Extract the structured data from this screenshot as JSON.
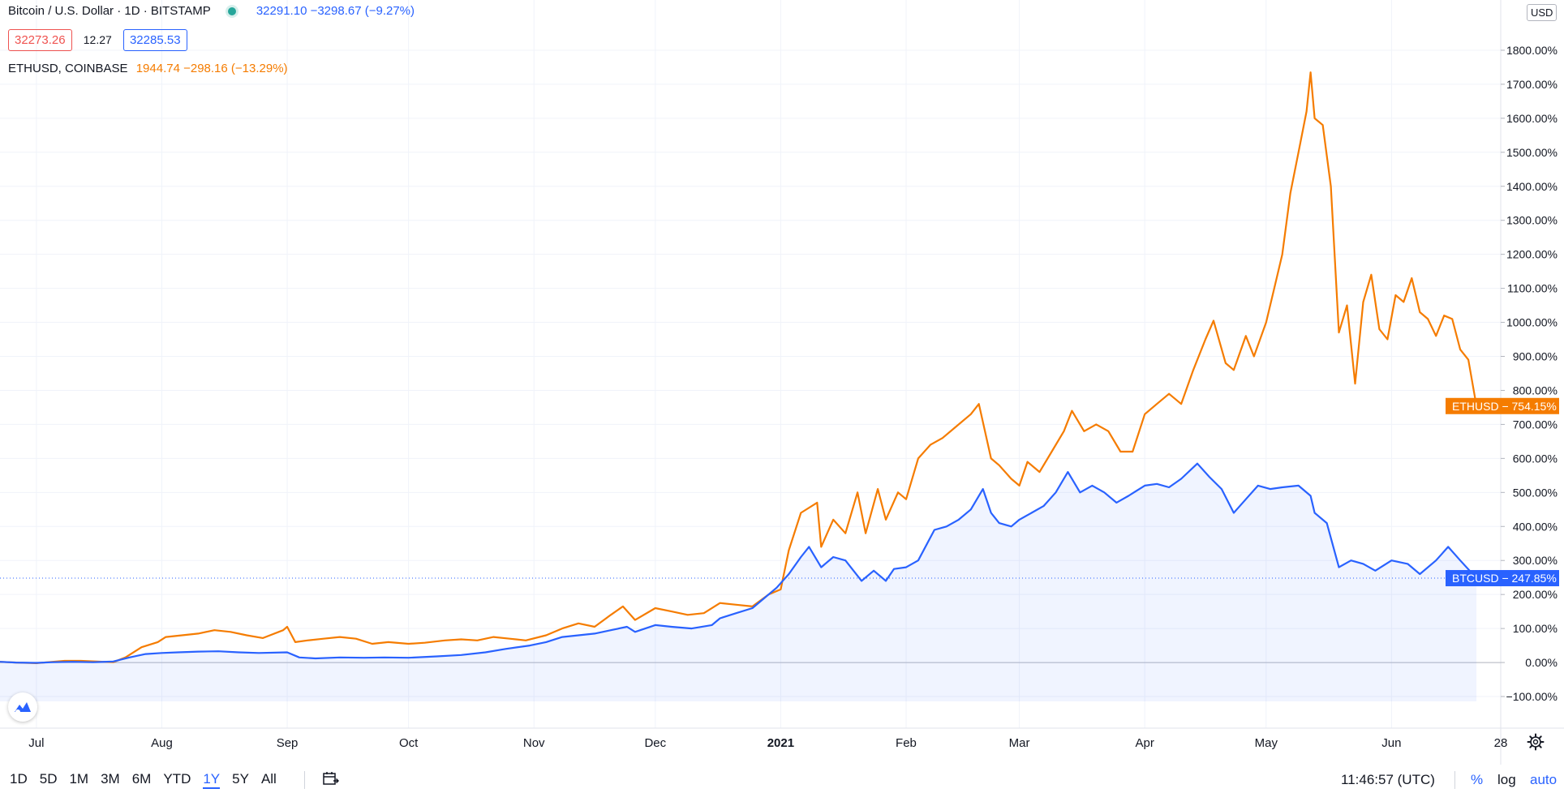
{
  "header": {
    "title": "Bitcoin / U.S. Dollar · 1D · BITSTAMP",
    "btc_quote": "32291.10 −3298.67 (−9.27%)",
    "bid": "32273.26",
    "spread": "12.27",
    "ask": "32285.53",
    "compare_label": "ETHUSD, COINBASE",
    "eth_quote": "1944.74 −298.16 (−13.29%)"
  },
  "axis": {
    "currency": "USD",
    "btc_tag": "BTCUSD − 247.85%",
    "eth_tag": "ETHUSD − 754.15%",
    "year_label": "2021",
    "end_label": "28"
  },
  "bottom": {
    "ranges": [
      "1D",
      "5D",
      "1M",
      "3M",
      "6M",
      "YTD",
      "1Y",
      "5Y",
      "All"
    ],
    "active_range": "1Y",
    "clock": "11:46:57 (UTC)",
    "percent": "%",
    "log": "log",
    "auto": "auto"
  },
  "colors": {
    "btc": "#2962ff",
    "eth": "#f57c00",
    "grid": "#f0f3fa"
  },
  "chart_data": {
    "type": "line",
    "y_unit": "%",
    "ylim": [
      -150,
      1900
    ],
    "yticks": [
      -100,
      0,
      100,
      200,
      300,
      400,
      500,
      600,
      700,
      800,
      900,
      1000,
      1100,
      1200,
      1300,
      1400,
      1500,
      1600,
      1700,
      1800
    ],
    "ytick_labels": [
      "−100.00%",
      "0.00%",
      "100.00%",
      "200.00%",
      "300.00%",
      "400.00%",
      "500.00%",
      "600.00%",
      "700.00%",
      "800.00%",
      "900.00%",
      "1000.00%",
      "1100.00%",
      "1200.00%",
      "1300.00%",
      "1400.00%",
      "1500.00%",
      "1600.00%",
      "1700.00%",
      "1800.00%"
    ],
    "xlim": [
      "2020-06-22",
      "2021-06-28"
    ],
    "xticks": [
      {
        "date": "2020-07-01",
        "label": "Jul"
      },
      {
        "date": "2020-08-01",
        "label": "Aug"
      },
      {
        "date": "2020-09-01",
        "label": "Sep"
      },
      {
        "date": "2020-10-01",
        "label": "Oct"
      },
      {
        "date": "2020-11-01",
        "label": "Nov"
      },
      {
        "date": "2020-12-01",
        "label": "Dec"
      },
      {
        "date": "2021-01-01",
        "label": "2021"
      },
      {
        "date": "2021-02-01",
        "label": "Feb"
      },
      {
        "date": "2021-03-01",
        "label": "Mar"
      },
      {
        "date": "2021-04-01",
        "label": "Apr"
      },
      {
        "date": "2021-05-01",
        "label": "May"
      },
      {
        "date": "2021-06-01",
        "label": "Jun"
      },
      {
        "date": "2021-06-28",
        "label": "28"
      }
    ],
    "series": [
      {
        "name": "ETHUSD",
        "color": "#f57c00",
        "points": [
          [
            "2020-06-22",
            2
          ],
          [
            "2020-06-26",
            0
          ],
          [
            "2020-07-01",
            -2
          ],
          [
            "2020-07-05",
            2
          ],
          [
            "2020-07-08",
            5
          ],
          [
            "2020-07-12",
            5
          ],
          [
            "2020-07-16",
            3
          ],
          [
            "2020-07-20",
            1
          ],
          [
            "2020-07-23",
            15
          ],
          [
            "2020-07-27",
            45
          ],
          [
            "2020-07-31",
            60
          ],
          [
            "2020-08-02",
            75
          ],
          [
            "2020-08-06",
            80
          ],
          [
            "2020-08-10",
            85
          ],
          [
            "2020-08-14",
            95
          ],
          [
            "2020-08-18",
            90
          ],
          [
            "2020-08-22",
            80
          ],
          [
            "2020-08-26",
            72
          ],
          [
            "2020-08-31",
            95
          ],
          [
            "2020-09-01",
            105
          ],
          [
            "2020-09-03",
            60
          ],
          [
            "2020-09-06",
            65
          ],
          [
            "2020-09-10",
            70
          ],
          [
            "2020-09-14",
            75
          ],
          [
            "2020-09-18",
            70
          ],
          [
            "2020-09-22",
            55
          ],
          [
            "2020-09-26",
            60
          ],
          [
            "2020-10-01",
            55
          ],
          [
            "2020-10-05",
            58
          ],
          [
            "2020-10-10",
            65
          ],
          [
            "2020-10-14",
            68
          ],
          [
            "2020-10-18",
            65
          ],
          [
            "2020-10-22",
            75
          ],
          [
            "2020-10-26",
            70
          ],
          [
            "2020-10-30",
            65
          ],
          [
            "2020-11-04",
            80
          ],
          [
            "2020-11-08",
            100
          ],
          [
            "2020-11-12",
            115
          ],
          [
            "2020-11-16",
            105
          ],
          [
            "2020-11-20",
            140
          ],
          [
            "2020-11-23",
            165
          ],
          [
            "2020-11-26",
            125
          ],
          [
            "2020-12-01",
            160
          ],
          [
            "2020-12-05",
            150
          ],
          [
            "2020-12-09",
            140
          ],
          [
            "2020-12-13",
            145
          ],
          [
            "2020-12-17",
            175
          ],
          [
            "2020-12-21",
            170
          ],
          [
            "2020-12-25",
            165
          ],
          [
            "2020-12-29",
            200
          ],
          [
            "2021-01-01",
            215
          ],
          [
            "2021-01-03",
            330
          ],
          [
            "2021-01-06",
            440
          ],
          [
            "2021-01-10",
            470
          ],
          [
            "2021-01-11",
            340
          ],
          [
            "2021-01-14",
            420
          ],
          [
            "2021-01-17",
            380
          ],
          [
            "2021-01-20",
            500
          ],
          [
            "2021-01-22",
            380
          ],
          [
            "2021-01-25",
            510
          ],
          [
            "2021-01-27",
            420
          ],
          [
            "2021-01-30",
            500
          ],
          [
            "2021-02-01",
            480
          ],
          [
            "2021-02-04",
            600
          ],
          [
            "2021-02-07",
            640
          ],
          [
            "2021-02-10",
            660
          ],
          [
            "2021-02-13",
            690
          ],
          [
            "2021-02-17",
            730
          ],
          [
            "2021-02-19",
            760
          ],
          [
            "2021-02-22",
            600
          ],
          [
            "2021-02-24",
            580
          ],
          [
            "2021-02-27",
            540
          ],
          [
            "2021-03-01",
            520
          ],
          [
            "2021-03-03",
            590
          ],
          [
            "2021-03-06",
            560
          ],
          [
            "2021-03-09",
            620
          ],
          [
            "2021-03-12",
            680
          ],
          [
            "2021-03-14",
            740
          ],
          [
            "2021-03-17",
            680
          ],
          [
            "2021-03-20",
            700
          ],
          [
            "2021-03-23",
            680
          ],
          [
            "2021-03-26",
            620
          ],
          [
            "2021-03-29",
            620
          ],
          [
            "2021-04-01",
            730
          ],
          [
            "2021-04-04",
            760
          ],
          [
            "2021-04-07",
            790
          ],
          [
            "2021-04-10",
            760
          ],
          [
            "2021-04-13",
            860
          ],
          [
            "2021-04-16",
            950
          ],
          [
            "2021-04-18",
            1005
          ],
          [
            "2021-04-21",
            880
          ],
          [
            "2021-04-23",
            860
          ],
          [
            "2021-04-26",
            960
          ],
          [
            "2021-04-28",
            900
          ],
          [
            "2021-05-01",
            1000
          ],
          [
            "2021-05-03",
            1100
          ],
          [
            "2021-05-05",
            1200
          ],
          [
            "2021-05-07",
            1380
          ],
          [
            "2021-05-09",
            1500
          ],
          [
            "2021-05-11",
            1620
          ],
          [
            "2021-05-12",
            1735
          ],
          [
            "2021-05-13",
            1600
          ],
          [
            "2021-05-15",
            1580
          ],
          [
            "2021-05-17",
            1400
          ],
          [
            "2021-05-19",
            970
          ],
          [
            "2021-05-21",
            1050
          ],
          [
            "2021-05-23",
            820
          ],
          [
            "2021-05-25",
            1060
          ],
          [
            "2021-05-27",
            1140
          ],
          [
            "2021-05-29",
            980
          ],
          [
            "2021-05-31",
            950
          ],
          [
            "2021-06-02",
            1080
          ],
          [
            "2021-06-04",
            1060
          ],
          [
            "2021-06-06",
            1130
          ],
          [
            "2021-06-08",
            1030
          ],
          [
            "2021-06-10",
            1010
          ],
          [
            "2021-06-12",
            960
          ],
          [
            "2021-06-14",
            1020
          ],
          [
            "2021-06-16",
            1010
          ],
          [
            "2021-06-18",
            920
          ],
          [
            "2021-06-20",
            890
          ],
          [
            "2021-06-22",
            754
          ]
        ]
      },
      {
        "name": "BTCUSD",
        "color": "#2962ff",
        "points": [
          [
            "2020-06-22",
            2
          ],
          [
            "2020-06-26",
            0
          ],
          [
            "2020-07-01",
            -1
          ],
          [
            "2020-07-05",
            1
          ],
          [
            "2020-07-10",
            2
          ],
          [
            "2020-07-15",
            1
          ],
          [
            "2020-07-20",
            3
          ],
          [
            "2020-07-24",
            15
          ],
          [
            "2020-07-28",
            25
          ],
          [
            "2020-08-01",
            28
          ],
          [
            "2020-08-05",
            30
          ],
          [
            "2020-08-10",
            32
          ],
          [
            "2020-08-15",
            33
          ],
          [
            "2020-08-20",
            30
          ],
          [
            "2020-08-25",
            28
          ],
          [
            "2020-09-01",
            30
          ],
          [
            "2020-09-04",
            15
          ],
          [
            "2020-09-08",
            12
          ],
          [
            "2020-09-14",
            15
          ],
          [
            "2020-09-20",
            14
          ],
          [
            "2020-09-25",
            15
          ],
          [
            "2020-10-01",
            14
          ],
          [
            "2020-10-08",
            18
          ],
          [
            "2020-10-14",
            22
          ],
          [
            "2020-10-20",
            30
          ],
          [
            "2020-10-25",
            40
          ],
          [
            "2020-10-31",
            50
          ],
          [
            "2020-11-04",
            60
          ],
          [
            "2020-11-08",
            75
          ],
          [
            "2020-11-12",
            80
          ],
          [
            "2020-11-16",
            85
          ],
          [
            "2020-11-20",
            95
          ],
          [
            "2020-11-24",
            105
          ],
          [
            "2020-11-26",
            90
          ],
          [
            "2020-12-01",
            110
          ],
          [
            "2020-12-05",
            105
          ],
          [
            "2020-12-10",
            100
          ],
          [
            "2020-12-15",
            110
          ],
          [
            "2020-12-17",
            130
          ],
          [
            "2020-12-21",
            145
          ],
          [
            "2020-12-25",
            160
          ],
          [
            "2020-12-28",
            190
          ],
          [
            "2020-12-31",
            220
          ],
          [
            "2021-01-03",
            260
          ],
          [
            "2021-01-06",
            310
          ],
          [
            "2021-01-08",
            340
          ],
          [
            "2021-01-11",
            280
          ],
          [
            "2021-01-14",
            310
          ],
          [
            "2021-01-17",
            300
          ],
          [
            "2021-01-21",
            240
          ],
          [
            "2021-01-24",
            270
          ],
          [
            "2021-01-27",
            240
          ],
          [
            "2021-01-29",
            275
          ],
          [
            "2021-02-01",
            280
          ],
          [
            "2021-02-04",
            300
          ],
          [
            "2021-02-08",
            390
          ],
          [
            "2021-02-11",
            400
          ],
          [
            "2021-02-14",
            420
          ],
          [
            "2021-02-17",
            450
          ],
          [
            "2021-02-20",
            510
          ],
          [
            "2021-02-22",
            440
          ],
          [
            "2021-02-24",
            410
          ],
          [
            "2021-02-27",
            400
          ],
          [
            "2021-03-01",
            420
          ],
          [
            "2021-03-04",
            440
          ],
          [
            "2021-03-07",
            460
          ],
          [
            "2021-03-10",
            500
          ],
          [
            "2021-03-13",
            560
          ],
          [
            "2021-03-16",
            500
          ],
          [
            "2021-03-19",
            520
          ],
          [
            "2021-03-22",
            500
          ],
          [
            "2021-03-25",
            470
          ],
          [
            "2021-03-28",
            490
          ],
          [
            "2021-04-01",
            520
          ],
          [
            "2021-04-04",
            525
          ],
          [
            "2021-04-07",
            515
          ],
          [
            "2021-04-10",
            540
          ],
          [
            "2021-04-14",
            585
          ],
          [
            "2021-04-17",
            545
          ],
          [
            "2021-04-20",
            510
          ],
          [
            "2021-04-23",
            440
          ],
          [
            "2021-04-26",
            480
          ],
          [
            "2021-04-29",
            520
          ],
          [
            "2021-05-02",
            510
          ],
          [
            "2021-05-05",
            515
          ],
          [
            "2021-05-09",
            520
          ],
          [
            "2021-05-12",
            490
          ],
          [
            "2021-05-13",
            440
          ],
          [
            "2021-05-16",
            410
          ],
          [
            "2021-05-19",
            280
          ],
          [
            "2021-05-22",
            300
          ],
          [
            "2021-05-25",
            290
          ],
          [
            "2021-05-28",
            270
          ],
          [
            "2021-06-01",
            300
          ],
          [
            "2021-06-05",
            290
          ],
          [
            "2021-06-08",
            260
          ],
          [
            "2021-06-12",
            300
          ],
          [
            "2021-06-15",
            340
          ],
          [
            "2021-06-18",
            300
          ],
          [
            "2021-06-22",
            248
          ]
        ]
      }
    ]
  }
}
